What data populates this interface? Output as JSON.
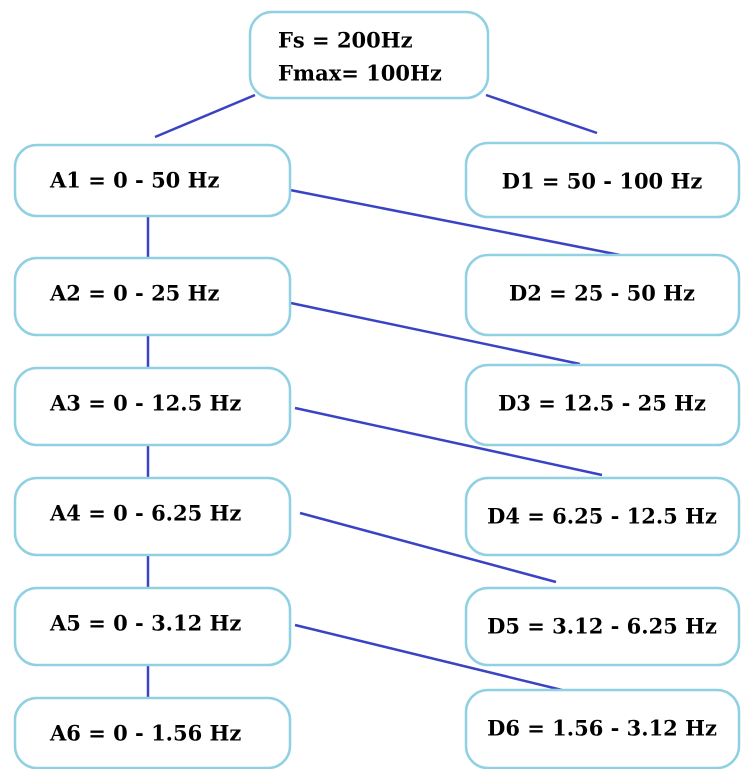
{
  "root": {
    "lines": [
      "Fs = 200Hz",
      "Fmax= 100Hz"
    ]
  },
  "approximations": [
    "A1 = 0 - 50 Hz",
    "A2 = 0 - 25 Hz",
    "A3 = 0 - 12.5 Hz",
    "A4 = 0 - 6.25 Hz",
    "A5 = 0 - 3.12 Hz",
    "A6 = 0 - 1.56 Hz"
  ],
  "details": [
    "D1 = 50 - 100 Hz",
    "D2 = 25 - 50 Hz",
    "D3 = 12.5 - 25 Hz",
    "D4 = 6.25 - 12.5 Hz",
    "D5 = 3.12 - 6.25 Hz",
    "D6 = 1.56 - 3.12 Hz"
  ]
}
